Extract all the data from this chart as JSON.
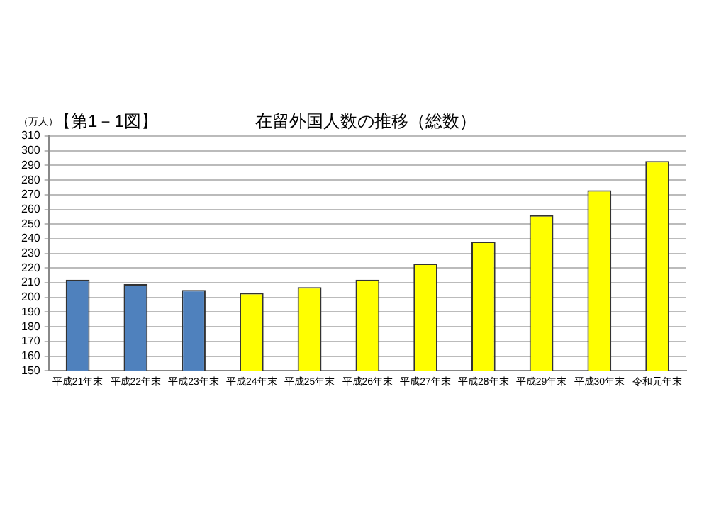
{
  "chart_data": {
    "type": "bar",
    "title": "在留外国人数の推移（総数）",
    "ylabel": "（万人）",
    "annotations": [
      "【第1－1図】"
    ],
    "categories": [
      "平成21年末",
      "平成22年末",
      "平成23年末",
      "平成24年末",
      "平成25年末",
      "平成26年末",
      "平成27年末",
      "平成28年末",
      "平成29年末",
      "平成30年末",
      "令和元年末"
    ],
    "values": [
      212,
      209,
      205,
      203,
      207,
      212,
      223,
      238,
      256,
      273,
      293
    ],
    "colors": [
      "#4f81bd",
      "#4f81bd",
      "#4f81bd",
      "#ffff00",
      "#ffff00",
      "#ffff00",
      "#ffff00",
      "#ffff00",
      "#ffff00",
      "#ffff00",
      "#ffff00"
    ],
    "ylim": [
      150,
      310
    ],
    "yticks": [
      150,
      160,
      170,
      180,
      190,
      200,
      210,
      220,
      230,
      240,
      250,
      260,
      270,
      280,
      290,
      300,
      310
    ],
    "grid": "y",
    "legend": false
  }
}
